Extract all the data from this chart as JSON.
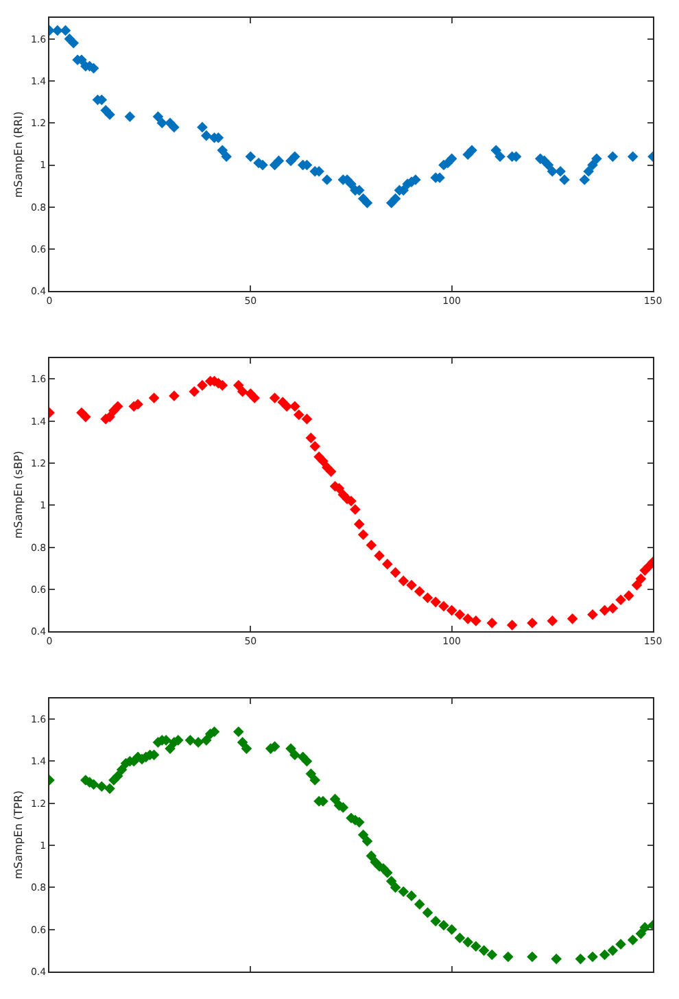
{
  "chart_data": [
    {
      "type": "scatter",
      "ylabel": "mSampEn (RRI)",
      "marker": "diamond",
      "xlim": [
        0,
        150
      ],
      "ylim": [
        0.4,
        1.7
      ],
      "xticks": [
        0,
        50,
        100,
        150
      ],
      "yticks": [
        0.4,
        0.6,
        0.8,
        1,
        1.2,
        1.4,
        1.6
      ],
      "x": [
        0,
        2,
        4,
        5,
        6,
        7,
        8,
        9,
        10,
        11,
        12,
        13,
        14,
        15,
        20,
        27,
        28,
        30,
        31,
        38,
        39,
        41,
        42,
        43,
        44,
        50,
        52,
        53,
        56,
        57,
        60,
        61,
        63,
        64,
        66,
        67,
        69,
        73,
        74,
        75,
        76,
        77,
        78,
        79,
        85,
        86,
        87,
        88,
        89,
        90,
        91,
        96,
        97,
        98,
        99,
        100,
        104,
        105,
        111,
        112,
        115,
        116,
        122,
        123,
        124,
        125,
        127,
        128,
        133,
        134,
        135,
        136,
        140,
        145,
        150
      ],
      "series": [
        {
          "color": "#0072bd",
          "values": [
            1.64,
            1.64,
            1.64,
            1.6,
            1.58,
            1.5,
            1.5,
            1.47,
            1.47,
            1.46,
            1.31,
            1.31,
            1.26,
            1.24,
            1.23,
            1.23,
            1.2,
            1.2,
            1.18,
            1.18,
            1.14,
            1.13,
            1.13,
            1.07,
            1.04,
            1.04,
            1.01,
            1.0,
            1.0,
            1.02,
            1.02,
            1.04,
            1.0,
            1.0,
            0.97,
            0.97,
            0.93,
            0.93,
            0.93,
            0.91,
            0.88,
            0.88,
            0.84,
            0.82,
            0.82,
            0.84,
            0.88,
            0.88,
            0.91,
            0.92,
            0.93,
            0.94,
            0.94,
            1.0,
            1.01,
            1.03,
            1.05,
            1.07,
            1.07,
            1.04,
            1.04,
            1.04,
            1.03,
            1.02,
            1.0,
            0.97,
            0.97,
            0.93,
            0.93,
            0.97,
            1.0,
            1.03,
            1.04,
            1.04,
            1.04
          ]
        }
      ]
    },
    {
      "type": "scatter",
      "ylabel": "mSampEn (sBP)",
      "marker": "diamond",
      "xlim": [
        0,
        150
      ],
      "ylim": [
        0.4,
        1.7
      ],
      "xticks": [
        0,
        50,
        100,
        150
      ],
      "yticks": [
        0.4,
        0.6,
        0.8,
        1,
        1.2,
        1.4,
        1.6
      ],
      "x": [
        0,
        8,
        9,
        14,
        15,
        16,
        17,
        21,
        22,
        26,
        31,
        36,
        38,
        40,
        41,
        42,
        43,
        47,
        48,
        50,
        51,
        56,
        58,
        59,
        61,
        62,
        64,
        65,
        66,
        67,
        68,
        69,
        70,
        71,
        72,
        73,
        74,
        75,
        76,
        77,
        78,
        80,
        82,
        84,
        86,
        88,
        90,
        92,
        94,
        96,
        98,
        100,
        102,
        104,
        106,
        110,
        115,
        120,
        125,
        130,
        135,
        138,
        140,
        142,
        144,
        146,
        147,
        148,
        149,
        150
      ],
      "series": [
        {
          "color": "#ff0000",
          "values": [
            1.44,
            1.44,
            1.42,
            1.41,
            1.42,
            1.45,
            1.47,
            1.47,
            1.48,
            1.51,
            1.52,
            1.54,
            1.57,
            1.59,
            1.59,
            1.58,
            1.57,
            1.57,
            1.54,
            1.53,
            1.51,
            1.51,
            1.49,
            1.47,
            1.47,
            1.43,
            1.41,
            1.32,
            1.28,
            1.23,
            1.21,
            1.18,
            1.16,
            1.09,
            1.08,
            1.05,
            1.03,
            1.02,
            0.98,
            0.91,
            0.86,
            0.81,
            0.76,
            0.72,
            0.68,
            0.64,
            0.62,
            0.59,
            0.56,
            0.54,
            0.52,
            0.5,
            0.48,
            0.46,
            0.45,
            0.44,
            0.43,
            0.44,
            0.45,
            0.46,
            0.48,
            0.5,
            0.51,
            0.55,
            0.57,
            0.62,
            0.65,
            0.69,
            0.71,
            0.73
          ]
        }
      ]
    },
    {
      "type": "scatter",
      "ylabel": "mSampEn (TPR)",
      "marker": "diamond",
      "tick_labels": "y",
      "xlim": [
        0,
        150
      ],
      "ylim": [
        0.4,
        1.7
      ],
      "xticks": [
        0,
        50,
        100,
        150
      ],
      "yticks": [
        0.4,
        0.6,
        0.8,
        1,
        1.2,
        1.4,
        1.6
      ],
      "x": [
        0,
        9,
        10,
        11,
        13,
        15,
        16,
        17,
        18,
        19,
        20,
        21,
        22,
        23,
        24,
        25,
        26,
        27,
        28,
        29,
        30,
        31,
        32,
        35,
        37,
        39,
        40,
        41,
        47,
        48,
        49,
        55,
        56,
        60,
        61,
        63,
        64,
        65,
        66,
        67,
        68,
        71,
        72,
        73,
        75,
        76,
        77,
        78,
        79,
        80,
        81,
        82,
        83,
        84,
        85,
        86,
        88,
        90,
        92,
        94,
        96,
        98,
        100,
        102,
        104,
        106,
        108,
        110,
        114,
        120,
        126,
        132,
        135,
        138,
        140,
        142,
        145,
        147,
        148,
        150
      ],
      "series": [
        {
          "color": "#008000",
          "values": [
            1.31,
            1.31,
            1.3,
            1.29,
            1.28,
            1.27,
            1.31,
            1.33,
            1.36,
            1.39,
            1.4,
            1.4,
            1.42,
            1.41,
            1.42,
            1.43,
            1.43,
            1.49,
            1.5,
            1.5,
            1.46,
            1.49,
            1.5,
            1.5,
            1.49,
            1.5,
            1.53,
            1.54,
            1.54,
            1.49,
            1.46,
            1.46,
            1.47,
            1.46,
            1.43,
            1.42,
            1.4,
            1.34,
            1.31,
            1.21,
            1.21,
            1.22,
            1.19,
            1.18,
            1.13,
            1.12,
            1.11,
            1.05,
            1.02,
            0.95,
            0.92,
            0.9,
            0.89,
            0.87,
            0.83,
            0.8,
            0.78,
            0.76,
            0.72,
            0.68,
            0.64,
            0.62,
            0.6,
            0.56,
            0.54,
            0.52,
            0.5,
            0.48,
            0.47,
            0.47,
            0.46,
            0.46,
            0.47,
            0.48,
            0.5,
            0.53,
            0.55,
            0.58,
            0.61,
            0.62
          ]
        }
      ]
    }
  ]
}
